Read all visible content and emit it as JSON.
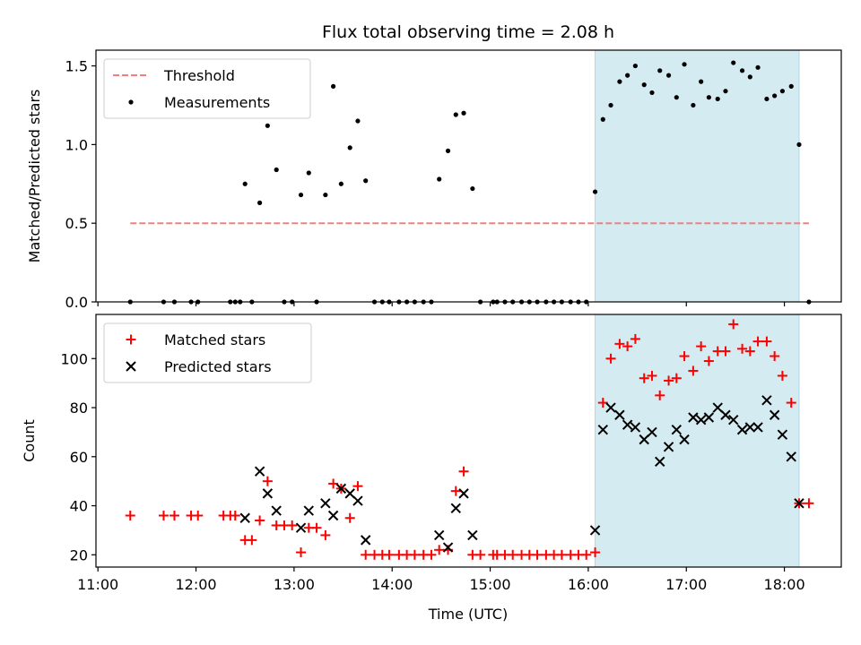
{
  "chart_data": {
    "title": "Flux total observing time = 2.08 h",
    "xlabel": "Time (UTC)",
    "x_ticks": [
      "11:00",
      "12:00",
      "13:00",
      "14:00",
      "15:00",
      "16:00",
      "17:00",
      "18:00"
    ],
    "x_tick_hours": [
      11,
      12,
      13,
      14,
      15,
      16,
      17,
      18
    ],
    "xlim_hours": [
      10.98,
      18.58
    ],
    "observing_window_hours": [
      16.07,
      18.15
    ],
    "observing_window_color": "#d4ebf1",
    "panels": [
      {
        "type": "scatter",
        "ylabel": "Matched/Predicted stars",
        "ylim": [
          0,
          1.6
        ],
        "y_ticks": [
          0.0,
          0.5,
          1.0,
          1.5
        ],
        "y_tick_labels": [
          "0.0",
          "0.5",
          "1.0",
          "1.5"
        ],
        "legend": [
          "Threshold",
          "Measurements"
        ],
        "threshold": {
          "name": "Threshold",
          "value": 0.5,
          "x_range": [
            11.33,
            18.25
          ],
          "color": "#f08080"
        },
        "series": [
          {
            "name": "Measurements",
            "color": "#000000",
            "points": [
              [
                11.33,
                0
              ],
              [
                11.67,
                0
              ],
              [
                11.78,
                0
              ],
              [
                11.95,
                0
              ],
              [
                12.02,
                0
              ],
              [
                12.35,
                0
              ],
              [
                12.4,
                0
              ],
              [
                12.45,
                0
              ],
              [
                12.5,
                0.75
              ],
              [
                12.57,
                0
              ],
              [
                12.65,
                0.63
              ],
              [
                12.73,
                1.12
              ],
              [
                12.82,
                0.84
              ],
              [
                12.9,
                0
              ],
              [
                12.98,
                0
              ],
              [
                13.07,
                0.68
              ],
              [
                13.15,
                0.82
              ],
              [
                13.23,
                0
              ],
              [
                13.32,
                0.68
              ],
              [
                13.4,
                1.37
              ],
              [
                13.48,
                0.75
              ],
              [
                13.57,
                0.98
              ],
              [
                13.65,
                1.15
              ],
              [
                13.73,
                0.77
              ],
              [
                13.82,
                0
              ],
              [
                13.9,
                0
              ],
              [
                13.97,
                0
              ],
              [
                14.07,
                0
              ],
              [
                14.15,
                0
              ],
              [
                14.23,
                0
              ],
              [
                14.32,
                0
              ],
              [
                14.4,
                0
              ],
              [
                14.48,
                0.78
              ],
              [
                14.57,
                0.96
              ],
              [
                14.65,
                1.19
              ],
              [
                14.73,
                1.2
              ],
              [
                14.82,
                0.72
              ],
              [
                14.9,
                0
              ],
              [
                15.03,
                0
              ],
              [
                15.07,
                0
              ],
              [
                15.15,
                0
              ],
              [
                15.23,
                0
              ],
              [
                15.32,
                0
              ],
              [
                15.4,
                0
              ],
              [
                15.48,
                0
              ],
              [
                15.57,
                0
              ],
              [
                15.65,
                0
              ],
              [
                15.73,
                0
              ],
              [
                15.82,
                0
              ],
              [
                15.9,
                0
              ],
              [
                15.98,
                0
              ],
              [
                16.07,
                0.7
              ],
              [
                16.15,
                1.16
              ],
              [
                16.23,
                1.25
              ],
              [
                16.32,
                1.4
              ],
              [
                16.4,
                1.44
              ],
              [
                16.48,
                1.5
              ],
              [
                16.57,
                1.38
              ],
              [
                16.65,
                1.33
              ],
              [
                16.73,
                1.47
              ],
              [
                16.82,
                1.44
              ],
              [
                16.9,
                1.3
              ],
              [
                16.98,
                1.51
              ],
              [
                17.07,
                1.25
              ],
              [
                17.15,
                1.4
              ],
              [
                17.23,
                1.3
              ],
              [
                17.32,
                1.29
              ],
              [
                17.4,
                1.34
              ],
              [
                17.48,
                1.52
              ],
              [
                17.57,
                1.47
              ],
              [
                17.65,
                1.43
              ],
              [
                17.73,
                1.49
              ],
              [
                17.82,
                1.29
              ],
              [
                17.9,
                1.31
              ],
              [
                17.98,
                1.34
              ],
              [
                18.07,
                1.37
              ],
              [
                18.15,
                1.0
              ],
              [
                18.25,
                0
              ]
            ]
          }
        ]
      },
      {
        "type": "scatter",
        "ylabel": "Count",
        "ylim": [
          15,
          118
        ],
        "y_ticks": [
          20,
          40,
          60,
          80,
          100
        ],
        "y_tick_labels": [
          "20",
          "40",
          "60",
          "80",
          "100"
        ],
        "legend": [
          "Matched stars",
          "Predicted stars"
        ],
        "series": [
          {
            "name": "Matched stars",
            "marker": "+",
            "color": "#ff0000",
            "points": [
              [
                11.33,
                36
              ],
              [
                11.67,
                36
              ],
              [
                11.78,
                36
              ],
              [
                11.95,
                36
              ],
              [
                12.02,
                36
              ],
              [
                12.28,
                36
              ],
              [
                12.35,
                36
              ],
              [
                12.4,
                36
              ],
              [
                12.5,
                26
              ],
              [
                12.57,
                26
              ],
              [
                12.65,
                34
              ],
              [
                12.73,
                50
              ],
              [
                12.82,
                32
              ],
              [
                12.9,
                32
              ],
              [
                12.98,
                32
              ],
              [
                13.07,
                21
              ],
              [
                13.15,
                31
              ],
              [
                13.23,
                31
              ],
              [
                13.32,
                28
              ],
              [
                13.4,
                49
              ],
              [
                13.48,
                47
              ],
              [
                13.57,
                35
              ],
              [
                13.65,
                48
              ],
              [
                13.73,
                20
              ],
              [
                13.82,
                20
              ],
              [
                13.9,
                20
              ],
              [
                13.97,
                20
              ],
              [
                14.07,
                20
              ],
              [
                14.15,
                20
              ],
              [
                14.23,
                20
              ],
              [
                14.32,
                20
              ],
              [
                14.4,
                20
              ],
              [
                14.48,
                22
              ],
              [
                14.57,
                22
              ],
              [
                14.65,
                46
              ],
              [
                14.73,
                54
              ],
              [
                14.82,
                20
              ],
              [
                14.9,
                20
              ],
              [
                15.03,
                20
              ],
              [
                15.07,
                20
              ],
              [
                15.15,
                20
              ],
              [
                15.23,
                20
              ],
              [
                15.32,
                20
              ],
              [
                15.4,
                20
              ],
              [
                15.48,
                20
              ],
              [
                15.57,
                20
              ],
              [
                15.65,
                20
              ],
              [
                15.73,
                20
              ],
              [
                15.82,
                20
              ],
              [
                15.9,
                20
              ],
              [
                15.98,
                20
              ],
              [
                16.07,
                21
              ],
              [
                16.15,
                82
              ],
              [
                16.23,
                100
              ],
              [
                16.32,
                106
              ],
              [
                16.4,
                105
              ],
              [
                16.48,
                108
              ],
              [
                16.57,
                92
              ],
              [
                16.65,
                93
              ],
              [
                16.73,
                85
              ],
              [
                16.82,
                91
              ],
              [
                16.9,
                92
              ],
              [
                16.98,
                101
              ],
              [
                17.07,
                95
              ],
              [
                17.15,
                105
              ],
              [
                17.23,
                99
              ],
              [
                17.32,
                103
              ],
              [
                17.4,
                103
              ],
              [
                17.48,
                114
              ],
              [
                17.57,
                104
              ],
              [
                17.65,
                103
              ],
              [
                17.73,
                107
              ],
              [
                17.82,
                107
              ],
              [
                17.9,
                101
              ],
              [
                17.98,
                93
              ],
              [
                18.07,
                82
              ],
              [
                18.15,
                41
              ],
              [
                18.25,
                41
              ]
            ]
          },
          {
            "name": "Predicted stars",
            "marker": "x",
            "color": "#000000",
            "points": [
              [
                12.5,
                35
              ],
              [
                12.65,
                54
              ],
              [
                12.73,
                45
              ],
              [
                12.82,
                38
              ],
              [
                13.07,
                31
              ],
              [
                13.15,
                38
              ],
              [
                13.32,
                41
              ],
              [
                13.4,
                36
              ],
              [
                13.48,
                47
              ],
              [
                13.57,
                45
              ],
              [
                13.65,
                42
              ],
              [
                13.73,
                26
              ],
              [
                14.48,
                28
              ],
              [
                14.57,
                23
              ],
              [
                14.65,
                39
              ],
              [
                14.73,
                45
              ],
              [
                14.82,
                28
              ],
              [
                16.07,
                30
              ],
              [
                16.15,
                71
              ],
              [
                16.23,
                80
              ],
              [
                16.32,
                77
              ],
              [
                16.4,
                73
              ],
              [
                16.48,
                72
              ],
              [
                16.57,
                67
              ],
              [
                16.65,
                70
              ],
              [
                16.73,
                58
              ],
              [
                16.82,
                64
              ],
              [
                16.9,
                71
              ],
              [
                16.98,
                67
              ],
              [
                17.07,
                76
              ],
              [
                17.15,
                75
              ],
              [
                17.23,
                76
              ],
              [
                17.32,
                80
              ],
              [
                17.4,
                77
              ],
              [
                17.48,
                75
              ],
              [
                17.57,
                71
              ],
              [
                17.65,
                72
              ],
              [
                17.73,
                72
              ],
              [
                17.82,
                83
              ],
              [
                17.9,
                77
              ],
              [
                17.98,
                69
              ],
              [
                18.07,
                60
              ],
              [
                18.15,
                41
              ]
            ]
          }
        ]
      }
    ]
  }
}
